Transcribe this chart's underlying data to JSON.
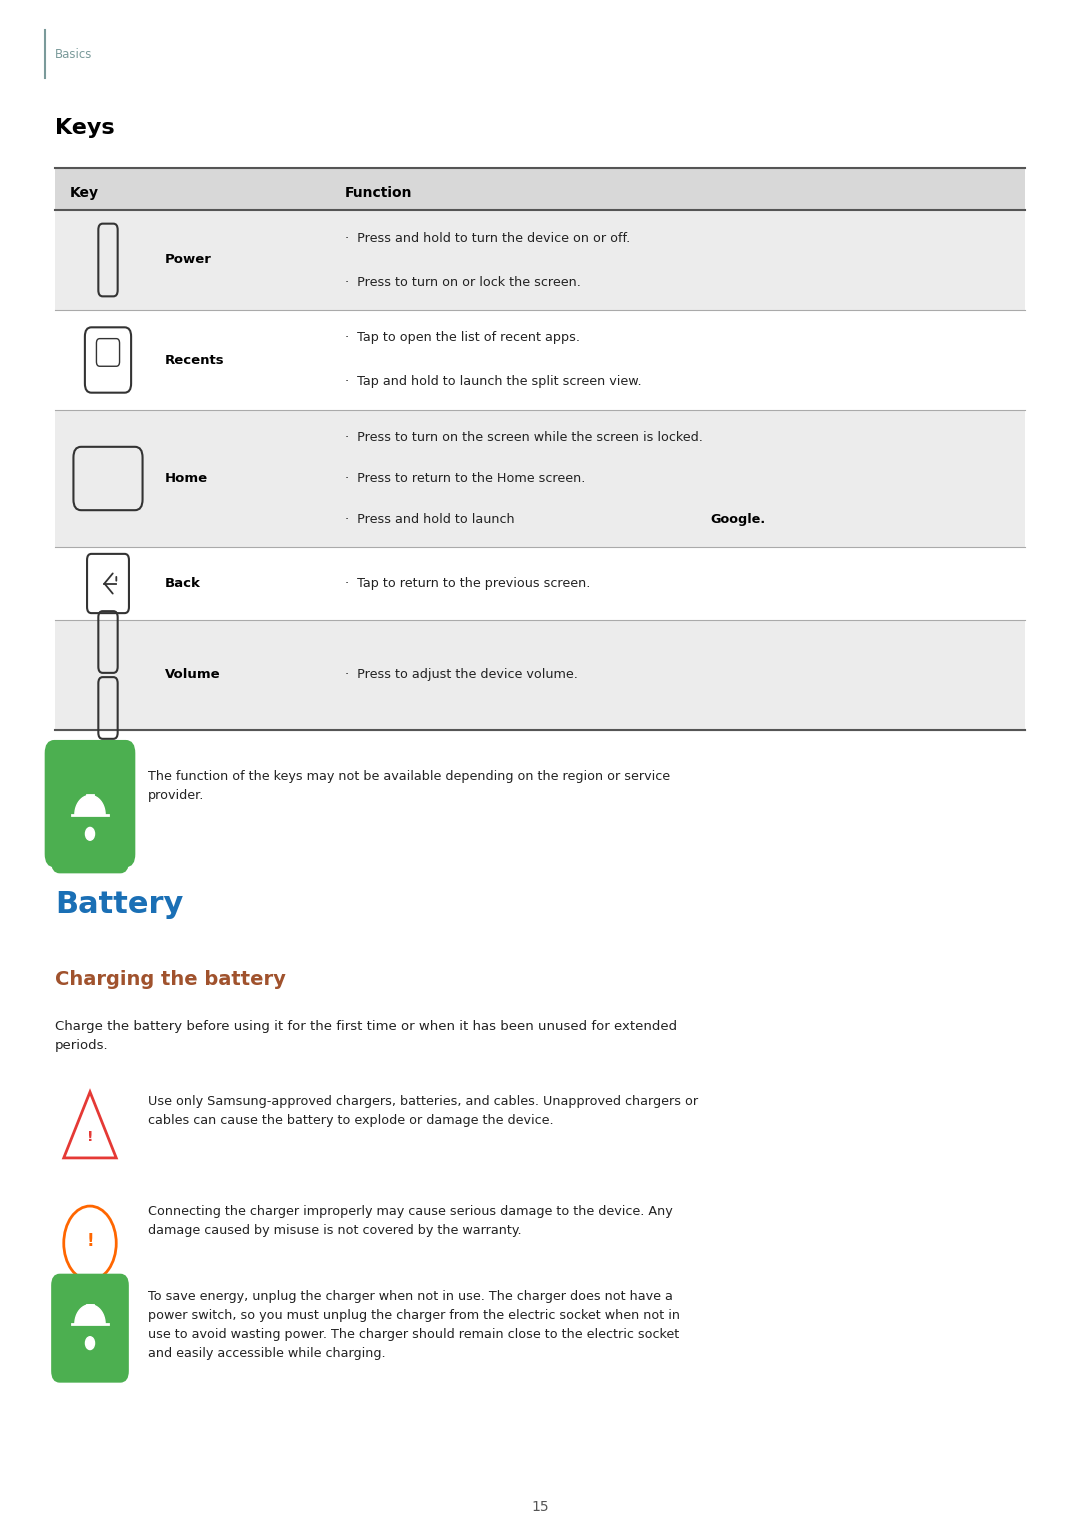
{
  "bg_color": "#ffffff",
  "page_width": 10.8,
  "page_height": 15.27,
  "basics_color": "#7a9a9a",
  "basics_text": "Basics",
  "keys_title": "Keys",
  "keys_title_color": "#000000",
  "table_header_bg": "#d8d8d8",
  "table_row_bg_alt": "#ececec",
  "table_row_bg_white": "#ffffff",
  "table_col1_header": "Key",
  "table_col2_header": "Function",
  "table_rows": [
    {
      "key_name": "Power",
      "icon_type": "power",
      "functions": [
        "Press and hold to turn the device on or off.",
        "Press to turn on or lock the screen."
      ],
      "bg": "#ececec"
    },
    {
      "key_name": "Recents",
      "icon_type": "recents",
      "functions": [
        "Tap to open the list of recent apps.",
        "Tap and hold to launch the split screen view."
      ],
      "bg": "#ffffff"
    },
    {
      "key_name": "Home",
      "icon_type": "home",
      "functions": [
        "Press to turn on the screen while the screen is locked.",
        "Press to return to the Home screen.",
        "Press and hold to launch ⁠Google⁠."
      ],
      "bg": "#ececec"
    },
    {
      "key_name": "Back",
      "icon_type": "back",
      "functions": [
        "Tap to return to the previous screen."
      ],
      "bg": "#ffffff"
    },
    {
      "key_name": "Volume",
      "icon_type": "volume",
      "functions": [
        "Press to adjust the device volume."
      ],
      "bg": "#ececec"
    }
  ],
  "note_bell_color": "#4caf50",
  "note_bell_bg": "#4caf50",
  "note_text": "The function of the keys may not be available depending on the region or service\nprovider.",
  "battery_title": "Battery",
  "battery_title_color": "#1a6fb5",
  "charging_title": "Charging the battery",
  "charging_title_color": "#a0522d",
  "charging_body": "Charge the battery before using it for the first time or when it has been unused for extended\nperiods.",
  "warning_items": [
    {
      "icon_type": "triangle_warning",
      "icon_color": "#e53935",
      "text": "Use only Samsung-approved chargers, batteries, and cables. Unapproved chargers or\ncables can cause the battery to explode or damage the device."
    },
    {
      "icon_type": "circle_exclaim",
      "icon_color": "#ff6600",
      "text": "Connecting the charger improperly may cause serious damage to the device. Any\ndamage caused by misuse is not covered by the warranty."
    },
    {
      "icon_type": "bell_green",
      "icon_color": "#4caf50",
      "text": "To save energy, unplug the charger when not in use. The charger does not have a\npower switch, so you must unplug the charger from the electric socket when not in\nuse to avoid wasting power. The charger should remain close to the electric socket\nand easily accessible while charging."
    }
  ],
  "page_number": "15",
  "text_color": "#222222",
  "font_size_body": 9.5,
  "font_size_table": 9.5,
  "separator_color": "#aaaaaa",
  "table_border_color": "#888888"
}
